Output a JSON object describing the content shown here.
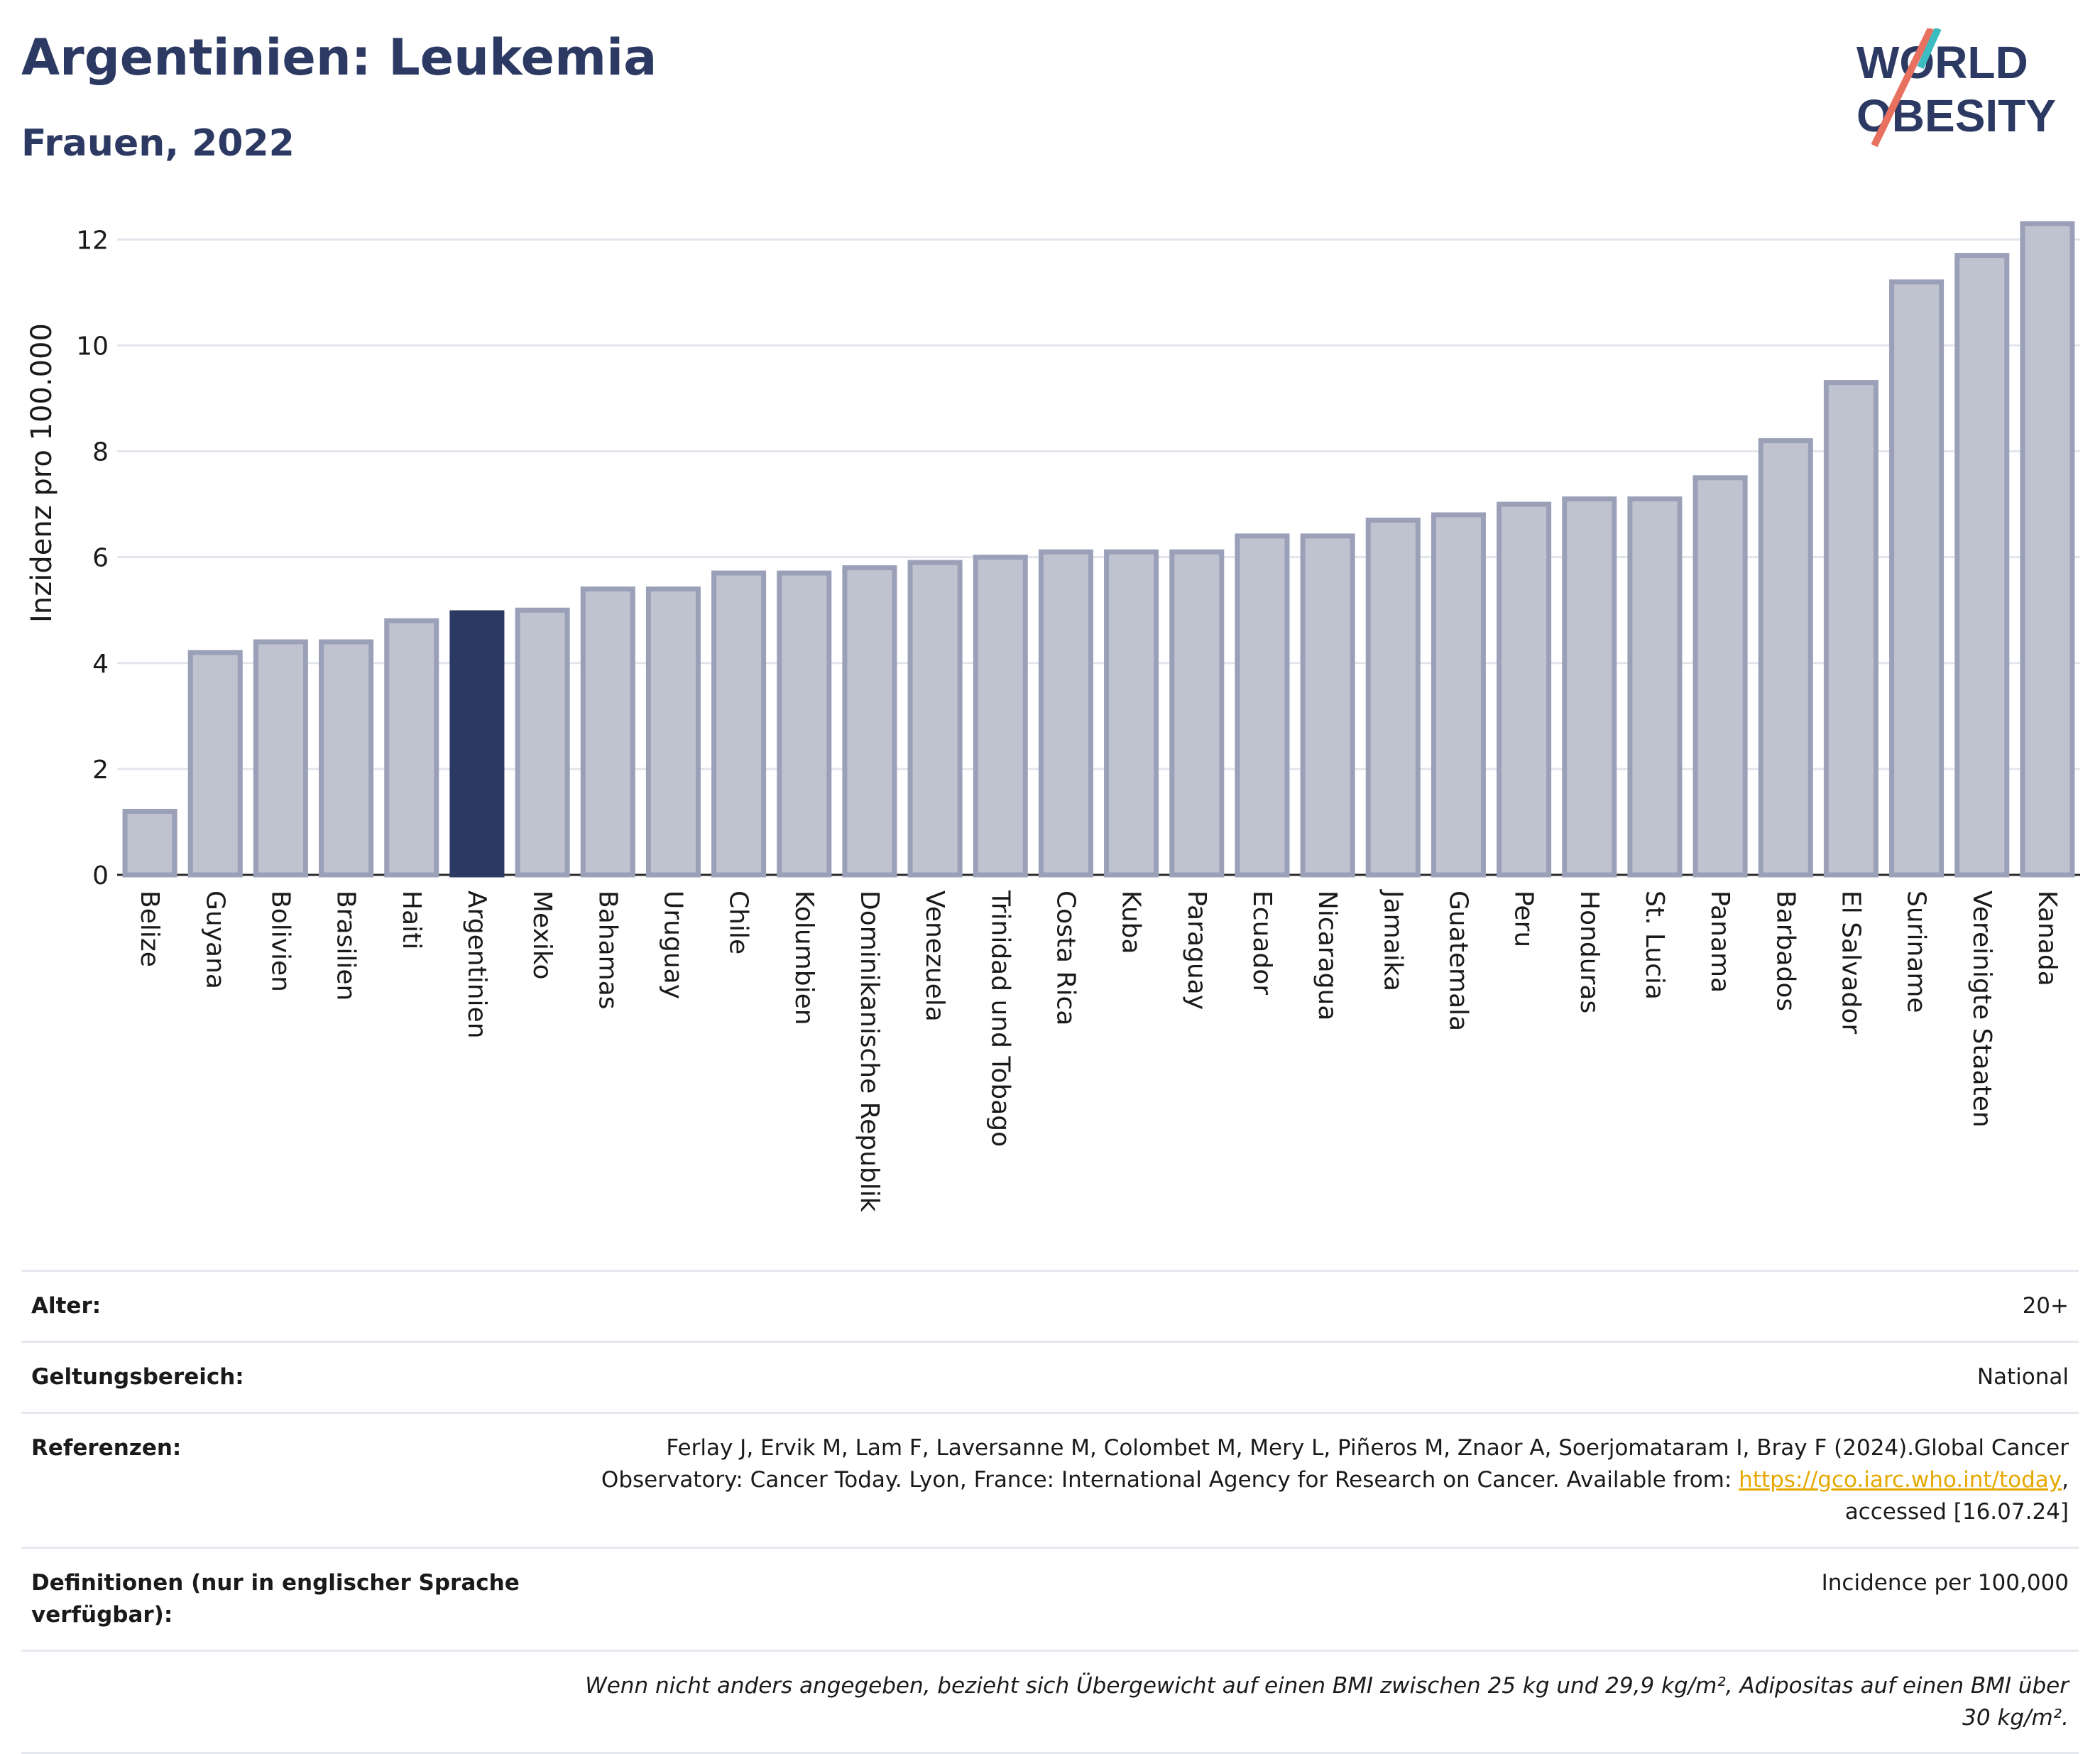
{
  "header": {
    "title": "Argentinien: Leukemia",
    "subtitle": "Frauen, 2022",
    "logo_line1": "WORLD",
    "logo_line2": "OBESITY"
  },
  "chart_data": {
    "type": "bar",
    "ylabel": "Inzidenz pro 100.000",
    "xlabel": "",
    "ylim": [
      0,
      12.5
    ],
    "yticks": [
      0,
      2,
      4,
      6,
      8,
      10,
      12
    ],
    "grid": true,
    "highlight": "Argentinien",
    "colors": {
      "bar": "#bfc3d0",
      "bar_edge": "#9aa0b8",
      "highlight": "#2c3a63"
    },
    "categories": [
      "Belize",
      "Guyana",
      "Bolivien",
      "Brasilien",
      "Haiti",
      "Argentinien",
      "Mexiko",
      "Bahamas",
      "Uruguay",
      "Chile",
      "Kolumbien",
      "Dominikanische Republik",
      "Venezuela",
      "Trinidad und Tobago",
      "Costa Rica",
      "Kuba",
      "Paraguay",
      "Ecuador",
      "Nicaragua",
      "Jamaika",
      "Guatemala",
      "Peru",
      "Honduras",
      "St. Lucia",
      "Panama",
      "Barbados",
      "El Salvador",
      "Suriname",
      "Vereinigte Staaten",
      "Kanada"
    ],
    "values": [
      1.2,
      4.2,
      4.4,
      4.4,
      4.8,
      4.95,
      5.0,
      5.4,
      5.4,
      5.7,
      5.7,
      5.8,
      5.9,
      6.0,
      6.1,
      6.1,
      6.1,
      6.4,
      6.4,
      6.7,
      6.8,
      7.0,
      7.1,
      7.1,
      7.5,
      8.2,
      9.3,
      11.2,
      11.7,
      12.3
    ]
  },
  "info": {
    "age_label": "Alter:",
    "age_value": "20+",
    "scope_label": "Geltungsbereich:",
    "scope_value": "National",
    "ref_label": "Referenzen:",
    "ref_text1": "Ferlay J, Ervik M, Lam F, Laversanne M, Colombet M, Mery L, Piñeros M, Znaor A, Soerjomataram I, Bray F (2024).Global Cancer Observatory: Cancer Today. Lyon, France: International Agency for Research on Cancer. Available from: ",
    "ref_link": "https://gco.iarc.who.int/today",
    "ref_text2": ", accessed [16.07.24]",
    "def_label": "Definitionen (nur in englischer Sprache verfügbar):",
    "def_value": "Incidence per 100,000",
    "note": "Wenn nicht anders angegeben, bezieht sich Übergewicht auf einen BMI zwischen 25 kg und 29,9 kg/m², Adipositas auf einen BMI über 30 kg/m²."
  }
}
